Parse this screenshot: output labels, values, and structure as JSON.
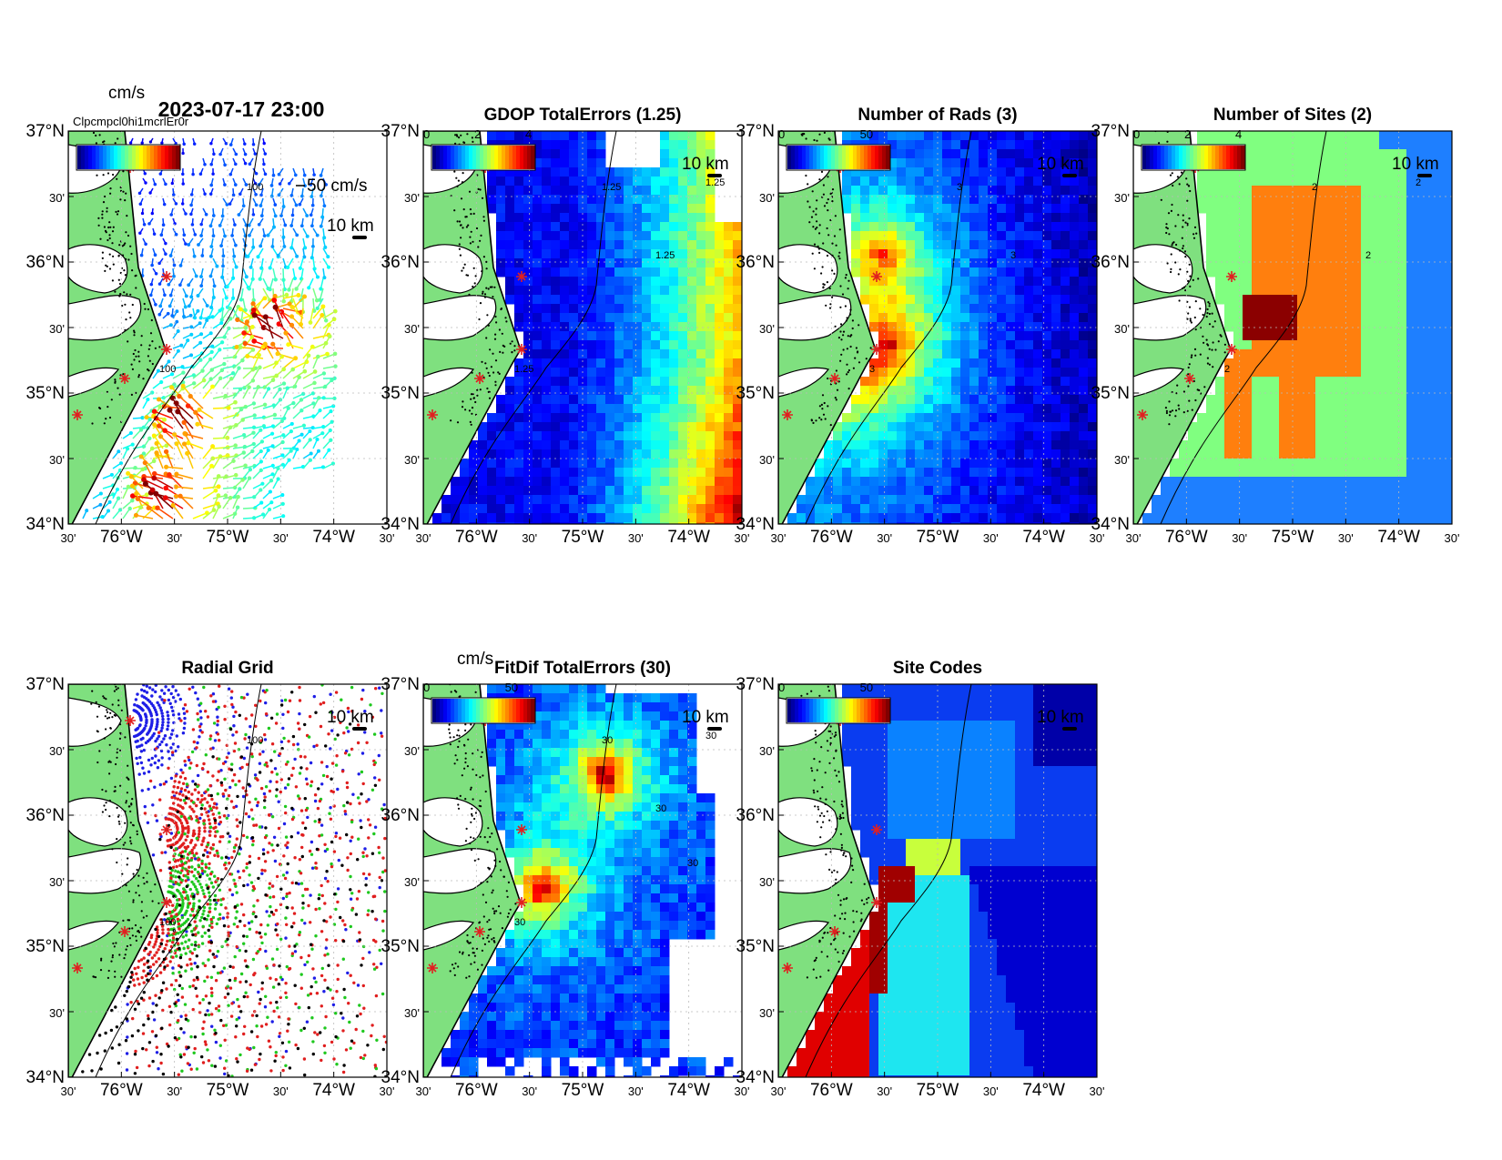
{
  "colors": {
    "land": "#7fe07f",
    "coast": "#000000",
    "site_marker": "#e02020",
    "grid": "#bbbbbb"
  },
  "latitude_ticks": [
    "37°N",
    "30'",
    "36°N",
    "30'",
    "35°N",
    "30'",
    "34°N"
  ],
  "longitude_ticks": [
    "30'",
    "76°W",
    "30'",
    "75°W",
    "30'",
    "74°W",
    "30'"
  ],
  "scale_bar_label": "10 km",
  "panels": [
    {
      "id": "currents",
      "title": "2023-07-17 23:00",
      "cbar_unit": "cm/s",
      "cbar_ticks": [],
      "vector_scale_label": "50 cm/s",
      "contour_labels": [
        "100",
        "100"
      ],
      "overlap_text": "Clpcmpcl0hi1mcrlEr0r"
    },
    {
      "id": "gdop",
      "title": "GDOP TotalErrors (1.25)",
      "cbar_unit": "",
      "cbar_ticks": [
        "0",
        "2",
        "4"
      ],
      "contour_labels": [
        "1.25",
        "1.25",
        "1.25",
        "1.25"
      ]
    },
    {
      "id": "nrads",
      "title": "Number of Rads (3)",
      "cbar_unit": "",
      "cbar_ticks": [
        "0",
        "50"
      ],
      "contour_labels": [
        "3",
        "3",
        "3"
      ]
    },
    {
      "id": "nsites",
      "title": "Number of Sites (2)",
      "cbar_unit": "",
      "cbar_ticks": [
        "0",
        "2",
        "4"
      ],
      "contour_labels": [
        "2",
        "2",
        "2",
        "2"
      ]
    },
    {
      "id": "radgrid",
      "title": "Radial Grid",
      "cbar_unit": "",
      "cbar_ticks": [],
      "contour_labels": [
        "100",
        "100"
      ]
    },
    {
      "id": "fitdif",
      "title": "FitDif TotalErrors (30)",
      "cbar_unit": "cm/s",
      "cbar_ticks": [
        "0",
        "50"
      ],
      "contour_labels": [
        "30",
        "30",
        "30",
        "30",
        "30"
      ]
    },
    {
      "id": "sitecodes",
      "title": "Site Codes",
      "cbar_unit": "",
      "cbar_ticks": [
        "0",
        "50"
      ],
      "contour_labels": []
    }
  ]
}
